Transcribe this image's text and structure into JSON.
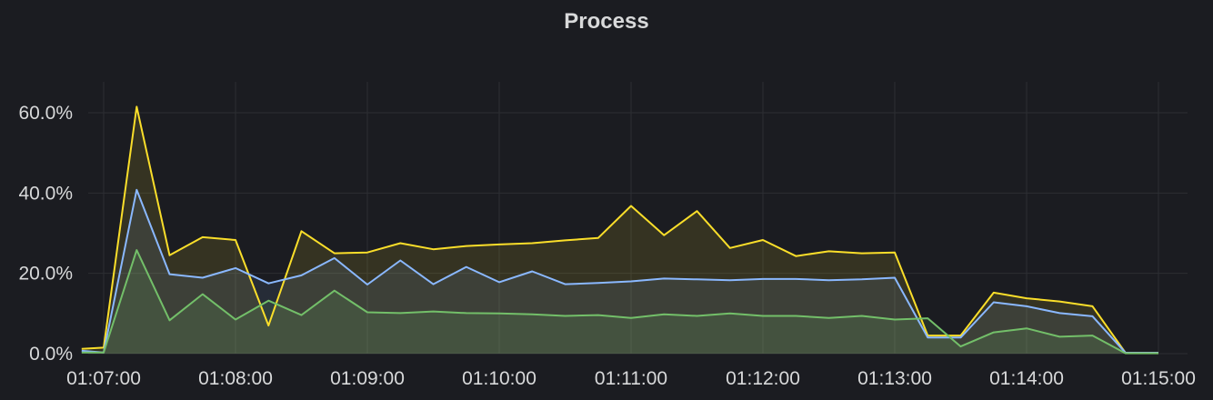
{
  "panel": {
    "title": "Process"
  },
  "chart_data": {
    "type": "area",
    "title": "Process",
    "xlabel": "",
    "ylabel": "",
    "x_unit": "time",
    "y_unit": "percent",
    "x_range": [
      "01:07:00",
      "01:15:00"
    ],
    "ylim": [
      0,
      68
    ],
    "grid": true,
    "legend": "none",
    "stacked": false,
    "x_ticks": [
      "01:07:00",
      "01:08:00",
      "01:09:00",
      "01:10:00",
      "01:11:00",
      "01:12:00",
      "01:13:00",
      "01:14:00",
      "01:15:00"
    ],
    "y_ticks": [
      "0.0%",
      "20.0%",
      "40.0%",
      "60.0%"
    ],
    "y_tick_values": [
      0,
      20,
      40,
      60
    ],
    "x": [
      "01:06:50",
      "01:07:00",
      "01:07:15",
      "01:07:30",
      "01:07:45",
      "01:08:00",
      "01:08:15",
      "01:08:30",
      "01:08:45",
      "01:09:00",
      "01:09:15",
      "01:09:30",
      "01:09:45",
      "01:10:00",
      "01:10:15",
      "01:10:30",
      "01:10:45",
      "01:11:00",
      "01:11:15",
      "01:11:30",
      "01:11:45",
      "01:12:00",
      "01:12:15",
      "01:12:30",
      "01:12:45",
      "01:13:00",
      "01:13:15",
      "01:13:30",
      "01:13:45",
      "01:14:00",
      "01:14:15",
      "01:14:30",
      "01:14:45",
      "01:15:00"
    ],
    "series": [
      {
        "color": "#fade2a",
        "fill": "rgba(250,222,42,0.12)",
        "values": [
          1.2,
          1.5,
          61.5,
          24.5,
          29,
          28.3,
          7,
          30.5,
          25,
          25.2,
          27.5,
          26,
          26.8,
          27.2,
          27.5,
          28.2,
          28.8,
          36.8,
          29.5,
          35.5,
          26.3,
          28.3,
          24.3,
          25.5,
          25,
          25.2,
          4.5,
          4.5,
          15.2,
          13.8,
          13,
          11.8,
          0.2,
          0.2
        ]
      },
      {
        "color": "#8ab8ff",
        "fill": "rgba(138,184,255,0.10)",
        "values": [
          0.7,
          0.3,
          40.8,
          19.8,
          18.9,
          21.3,
          17.5,
          19.5,
          23.8,
          17.2,
          23.2,
          17.3,
          21.6,
          17.8,
          20.5,
          17.3,
          17.6,
          18,
          18.7,
          18.5,
          18.3,
          18.6,
          18.6,
          18.3,
          18.5,
          18.9,
          4,
          4,
          12.8,
          11.8,
          10.1,
          9.3,
          0.2,
          0.2
        ]
      },
      {
        "color": "#73bf69",
        "fill": "rgba(115,191,105,0.14)",
        "values": [
          0.3,
          0.3,
          25.8,
          8.3,
          14.8,
          8.5,
          13.2,
          9.6,
          15.7,
          10.3,
          10.1,
          10.5,
          10.1,
          10,
          9.8,
          9.4,
          9.6,
          8.9,
          9.8,
          9.4,
          10,
          9.4,
          9.4,
          8.9,
          9.4,
          8.5,
          8.8,
          1.8,
          5.3,
          6.3,
          4.2,
          4.5,
          0.1,
          0.1
        ]
      }
    ]
  }
}
